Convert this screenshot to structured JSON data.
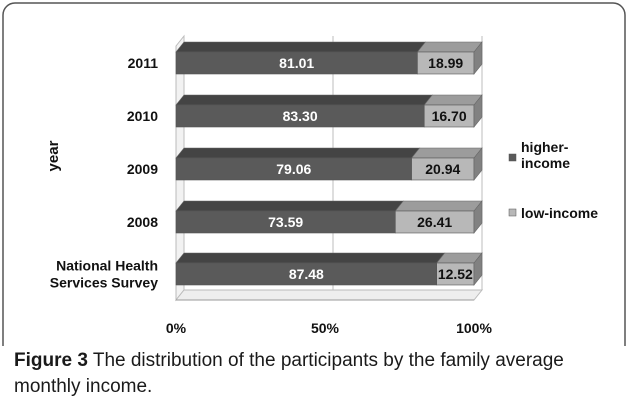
{
  "chart_data": {
    "type": "bar",
    "orientation": "horizontal",
    "stacked": "percent",
    "categories": [
      "2011",
      "2010",
      "2009",
      "2008",
      "National Health Services Survey"
    ],
    "category_lines": [
      [
        "2011"
      ],
      [
        "2010"
      ],
      [
        "2009"
      ],
      [
        "2008"
      ],
      [
        "National Health",
        "Services Survey"
      ]
    ],
    "series": [
      {
        "name": "higher-income",
        "values": [
          81.01,
          83.3,
          79.06,
          73.59,
          87.48
        ],
        "labels": [
          "81.01",
          "83.30",
          "79.06",
          "73.59",
          "87.48"
        ],
        "color": "#5a5a5a"
      },
      {
        "name": "low-income",
        "values": [
          18.99,
          16.7,
          20.94,
          26.41,
          12.52
        ],
        "labels": [
          "18.99",
          "16.70",
          "20.94",
          "26.41",
          "12.52"
        ],
        "color": "#b8b8b8"
      }
    ],
    "legend_lines": [
      [
        "higher-",
        "income"
      ],
      [
        "low-income"
      ]
    ],
    "ylabel": "year",
    "xlabel": "",
    "xlim": [
      0,
      100
    ],
    "xticks": [
      "0%",
      "50%",
      "100%"
    ],
    "grid": true,
    "legend_position": "right"
  },
  "caption": {
    "label": "Figure 3",
    "text": " The distribution of the participants by the family average monthly income."
  }
}
